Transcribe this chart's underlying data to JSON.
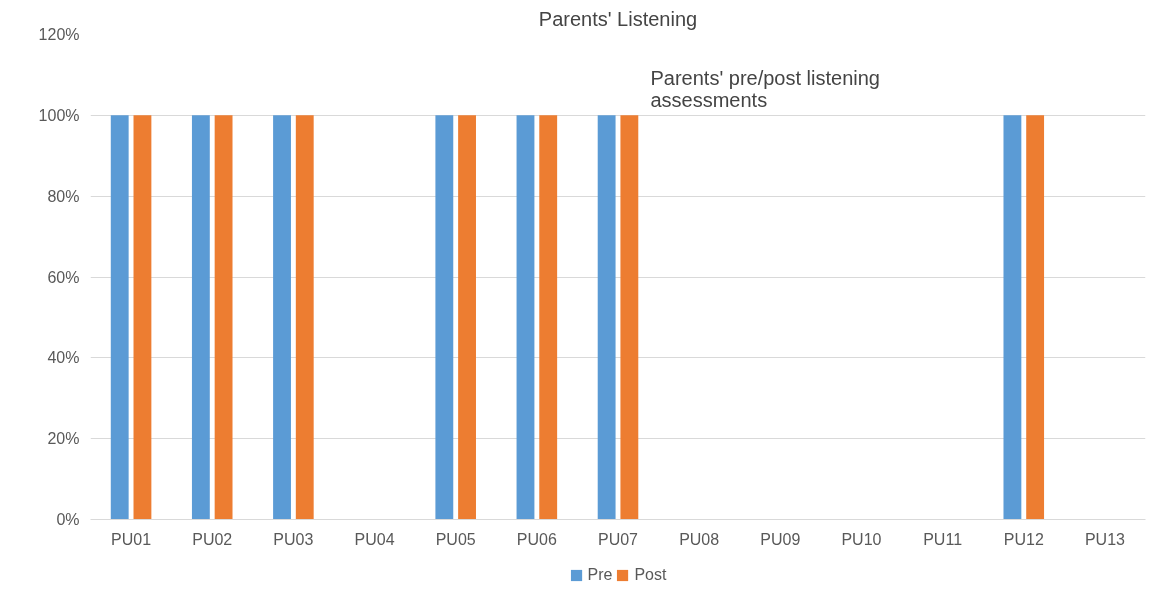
{
  "chart_data": {
    "type": "bar",
    "title": "Parents' Listening",
    "categories": [
      "PU01",
      "PU02",
      "PU03",
      "PU04",
      "PU05",
      "PU06",
      "PU07",
      "PU08",
      "PU09",
      "PU10",
      "PU11",
      "PU12",
      "PU13"
    ],
    "series": [
      {
        "name": "Pre",
        "color": "#5b9bd5",
        "values": [
          100,
          100,
          100,
          0,
          100,
          100,
          100,
          0,
          0,
          0,
          0,
          100,
          0
        ]
      },
      {
        "name": "Post",
        "color": "#ed7d31",
        "values": [
          100,
          100,
          100,
          0,
          100,
          100,
          100,
          0,
          0,
          0,
          0,
          100,
          0
        ]
      }
    ],
    "ylim": [
      0,
      120
    ],
    "yticks": [
      {
        "value": 0,
        "label": "0%"
      },
      {
        "value": 20,
        "label": "20%"
      },
      {
        "value": 40,
        "label": "40%"
      },
      {
        "value": 60,
        "label": "60%"
      },
      {
        "value": 80,
        "label": "80%"
      },
      {
        "value": 100,
        "label": "100%"
      },
      {
        "value": 120,
        "label": "120%"
      }
    ],
    "grid": "y",
    "legend": "bottom",
    "annotations": [
      "Parents' pre/post listening assessments"
    ]
  }
}
